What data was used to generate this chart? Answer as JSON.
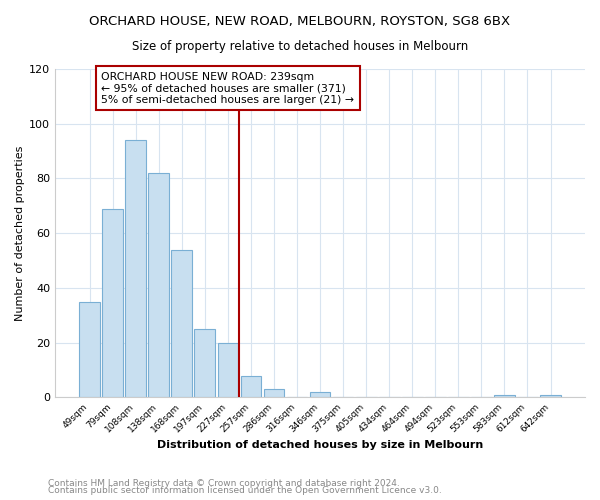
{
  "title": "ORCHARD HOUSE, NEW ROAD, MELBOURN, ROYSTON, SG8 6BX",
  "subtitle": "Size of property relative to detached houses in Melbourn",
  "xlabel": "Distribution of detached houses by size in Melbourn",
  "ylabel": "Number of detached properties",
  "bar_color": "#c8dff0",
  "bar_edge_color": "#7aafd4",
  "bins": [
    "49sqm",
    "79sqm",
    "108sqm",
    "138sqm",
    "168sqm",
    "197sqm",
    "227sqm",
    "257sqm",
    "286sqm",
    "316sqm",
    "346sqm",
    "375sqm",
    "405sqm",
    "434sqm",
    "464sqm",
    "494sqm",
    "523sqm",
    "553sqm",
    "583sqm",
    "612sqm",
    "642sqm"
  ],
  "values": [
    35,
    69,
    94,
    82,
    54,
    25,
    20,
    8,
    3,
    0,
    2,
    0,
    0,
    0,
    0,
    0,
    0,
    0,
    1,
    0,
    1
  ],
  "vline_index": 7,
  "vline_color": "#aa0000",
  "annotation_text": "ORCHARD HOUSE NEW ROAD: 239sqm\n← 95% of detached houses are smaller (371)\n5% of semi-detached houses are larger (21) →",
  "annotation_box_color": "white",
  "annotation_box_edge": "#aa0000",
  "ylim": [
    0,
    120
  ],
  "yticks": [
    0,
    20,
    40,
    60,
    80,
    100,
    120
  ],
  "footer1": "Contains HM Land Registry data © Crown copyright and database right 2024.",
  "footer2": "Contains public sector information licensed under the Open Government Licence v3.0.",
  "background_color": "#ffffff",
  "grid_color": "#d8e4f0"
}
